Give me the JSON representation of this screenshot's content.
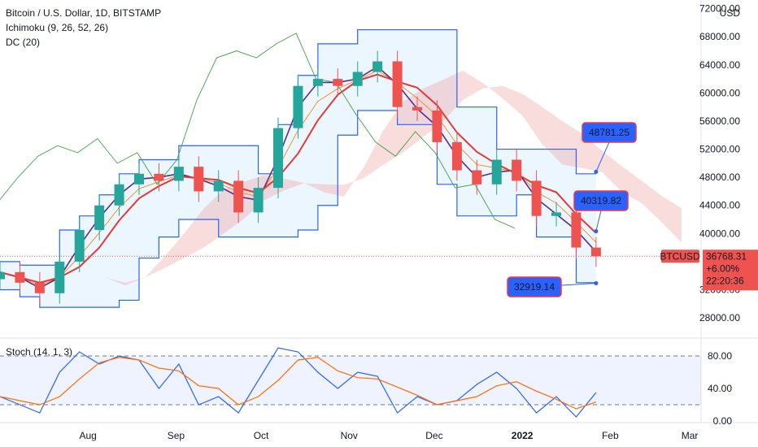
{
  "header": {
    "title": "Bitcoin / U.S. Dollar, 1D, BITSTAMP",
    "ichimoku": "Ichimoku (9, 26, 52, 26)",
    "dc": "DC (20)"
  },
  "colors": {
    "candle_up": "#26a69a",
    "candle_down": "#ef5350",
    "ichimoku_base": "#e53935",
    "ichimoku_conversion": "#5b2c8f",
    "ichimoku_lagging": "#43a047",
    "ichimoku_leading": "#f57c00",
    "cloud_bull": "#a5d6a7",
    "cloud_bear": "#ef9a9a",
    "donchian": "#2962ff",
    "donchian_fill": "#e3f2fd",
    "stoch_k": "#2962ff",
    "stoch_d": "#ff6d00",
    "price_line": "#ef5350",
    "callout_bg": "#2962ff",
    "callout_border": "#f23645"
  },
  "price_tag": {
    "symbol": "BTCUSD",
    "price": "36768.31",
    "change": "+6.00%",
    "countdown": "22:20:36"
  },
  "callouts": [
    {
      "text": "48781.25",
      "value": 48781.25
    },
    {
      "text": "40319.82",
      "value": 40319.82
    },
    {
      "text": "32919.14",
      "value": 32919.14
    }
  ],
  "stoch": {
    "label": "Stoch (14, 1, 3)",
    "yticks": [
      "80.00",
      "40.00",
      "0.00"
    ],
    "upper": 80,
    "lower": 20
  },
  "chart_data": {
    "type": "candlestick",
    "title": "Bitcoin / U.S. Dollar, 1D, BITSTAMP",
    "currency": "USD",
    "yticks": [
      "72000.00",
      "68000.00",
      "64000.00",
      "60000.00",
      "56000.00",
      "52000.00",
      "48000.00",
      "44000.00",
      "40000.00",
      "32000.00",
      "28000.00"
    ],
    "ylim": [
      25000,
      73000
    ],
    "xticks": [
      "Aug",
      "Sep",
      "Oct",
      "Nov",
      "Dec",
      "2022",
      "Feb",
      "Mar"
    ],
    "x": [
      "2021-07-01",
      "2021-07-08",
      "2021-07-15",
      "2021-07-22",
      "2021-07-29",
      "2021-08-05",
      "2021-08-12",
      "2021-08-19",
      "2021-08-26",
      "2021-09-02",
      "2021-09-09",
      "2021-09-16",
      "2021-09-23",
      "2021-09-30",
      "2021-10-07",
      "2021-10-14",
      "2021-10-21",
      "2021-10-28",
      "2021-11-04",
      "2021-11-11",
      "2021-11-18",
      "2021-11-25",
      "2021-12-02",
      "2021-12-09",
      "2021-12-16",
      "2021-12-23",
      "2021-12-30",
      "2022-01-06",
      "2022-01-13",
      "2022-01-20",
      "2022-01-27"
    ],
    "close": [
      34500,
      33000,
      31500,
      36000,
      40500,
      44000,
      47000,
      48500,
      47500,
      49500,
      46000,
      47500,
      43000,
      46500,
      55000,
      61000,
      62000,
      61000,
      63000,
      64500,
      58000,
      57500,
      53000,
      49000,
      47000,
      50500,
      47500,
      42500,
      43000,
      38000,
      36768
    ],
    "series": [
      {
        "name": "DC (20)",
        "upper": [
          36000,
          35500,
          35500,
          40500,
          42500,
          45500,
          48500,
          50500,
          50500,
          52500,
          52500,
          52500,
          52500,
          48500,
          55500,
          62500,
          67000,
          67000,
          69000,
          69000,
          69000,
          69000,
          69000,
          58000,
          58000,
          52000,
          52000,
          52000,
          52000,
          48500,
          48500
        ]
      },
      {
        "name": "DC (20)",
        "lower": [
          32000,
          31000,
          29500,
          29500,
          29500,
          29500,
          30500,
          36500,
          39500,
          42000,
          42000,
          39500,
          39500,
          39500,
          39500,
          40500,
          44000,
          54000,
          57500,
          57500,
          55500,
          55500,
          47000,
          42500,
          42500,
          42500,
          45500,
          39500,
          39500,
          33000,
          33000
        ]
      }
    ],
    "stochastic": {
      "name": "Stoch (14, 1, 3)",
      "k": [
        30,
        20,
        10,
        60,
        85,
        70,
        80,
        75,
        40,
        70,
        20,
        30,
        10,
        50,
        90,
        85,
        60,
        40,
        60,
        55,
        10,
        30,
        20,
        25,
        45,
        60,
        40,
        10,
        30,
        5,
        35
      ]
    }
  }
}
